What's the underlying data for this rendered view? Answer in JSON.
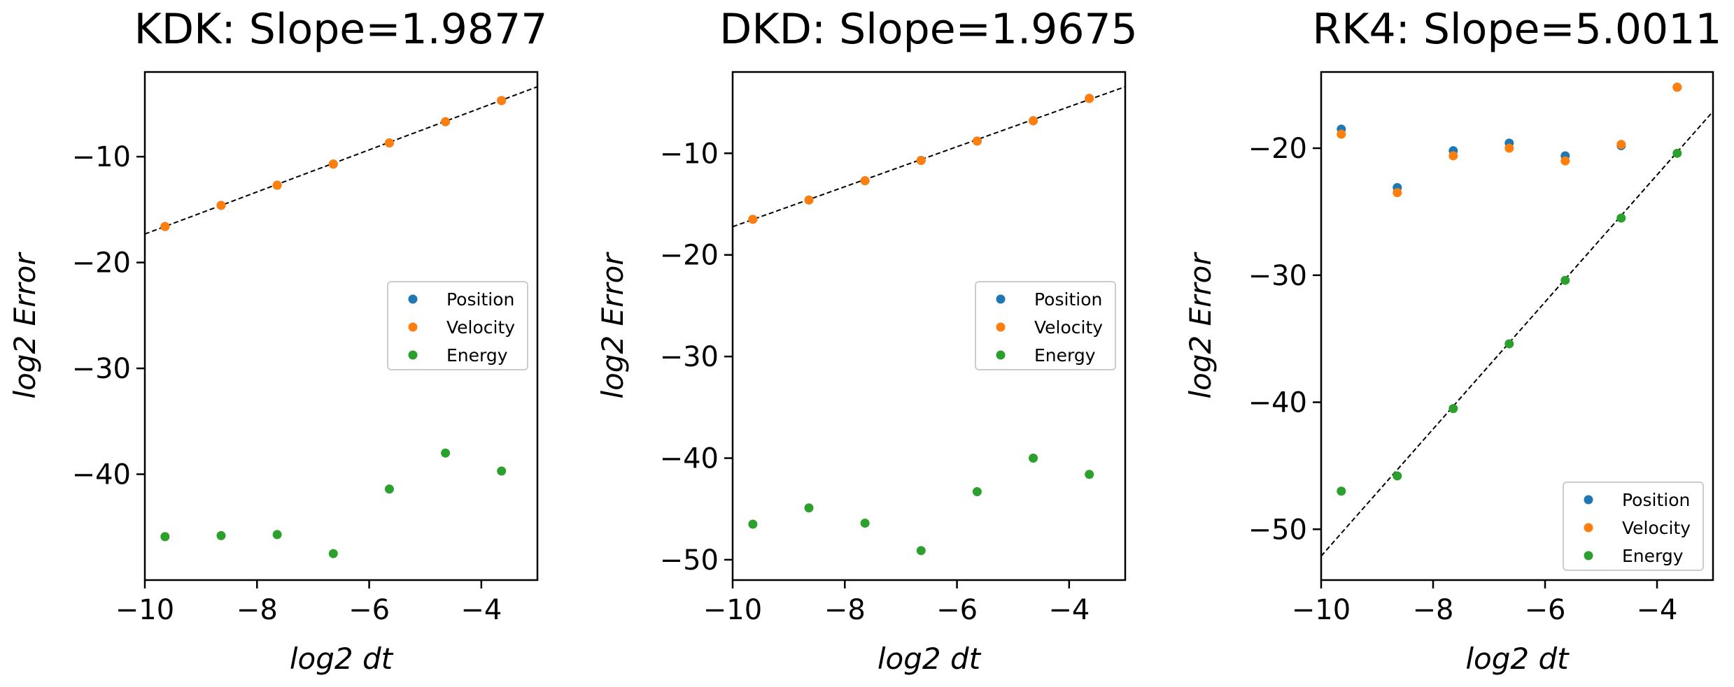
{
  "figure_title": "",
  "legend_entries": [
    "Position",
    "Velocity",
    "Energy"
  ],
  "colors": {
    "position": "#1f77b4",
    "velocity": "#ff7f0e",
    "energy": "#2ca02c",
    "fit_line": "#000000"
  },
  "chart_data": [
    {
      "type": "scatter",
      "title": "KDK: Slope=1.9877",
      "xlabel": "log2 dt",
      "ylabel": "log2 Error",
      "xlim": [
        -10,
        -3
      ],
      "ylim": [
        -50,
        -2
      ],
      "xticks": [
        -10,
        -8,
        -6,
        -4
      ],
      "yticks": [
        -10,
        -20,
        -30,
        -40
      ],
      "x": [
        -9.64,
        -8.64,
        -7.64,
        -6.64,
        -5.64,
        -4.64,
        -3.64
      ],
      "series": [
        {
          "name": "Position",
          "color": "#1f77b4",
          "values": [
            -16.6,
            -14.6,
            -12.7,
            -10.7,
            -8.7,
            -6.7,
            -4.7
          ]
        },
        {
          "name": "Velocity",
          "color": "#ff7f0e",
          "values": [
            -16.6,
            -14.6,
            -12.7,
            -10.7,
            -8.7,
            -6.7,
            -4.7
          ]
        },
        {
          "name": "Energy",
          "color": "#2ca02c",
          "values": [
            -45.9,
            -45.8,
            -45.7,
            -47.5,
            -41.4,
            -38.0,
            -39.7
          ]
        }
      ],
      "fit_line": {
        "slope": 1.9877,
        "intercept": 2.57
      },
      "legend_position": "center-right"
    },
    {
      "type": "scatter",
      "title": "DKD: Slope=1.9675",
      "xlabel": "log2 dt",
      "ylabel": "log2 Error",
      "xlim": [
        -10,
        -3
      ],
      "ylim": [
        -52,
        -2
      ],
      "xticks": [
        -10,
        -8,
        -6,
        -4
      ],
      "yticks": [
        -10,
        -20,
        -30,
        -40,
        -50
      ],
      "x": [
        -9.64,
        -8.64,
        -7.64,
        -6.64,
        -5.64,
        -4.64,
        -3.64
      ],
      "series": [
        {
          "name": "Position",
          "color": "#1f77b4",
          "values": [
            -16.5,
            -14.6,
            -12.7,
            -10.7,
            -8.8,
            -6.8,
            -4.6
          ]
        },
        {
          "name": "Velocity",
          "color": "#ff7f0e",
          "values": [
            -16.5,
            -14.6,
            -12.7,
            -10.7,
            -8.8,
            -6.8,
            -4.6
          ]
        },
        {
          "name": "Energy",
          "color": "#2ca02c",
          "values": [
            -46.5,
            -44.9,
            -46.4,
            -49.1,
            -43.3,
            -40.0,
            -41.6
          ]
        }
      ],
      "fit_line": {
        "slope": 1.9675,
        "intercept": 2.45
      },
      "legend_position": "center-right"
    },
    {
      "type": "scatter",
      "title": "RK4: Slope=5.0011",
      "xlabel": "log2 dt",
      "ylabel": "log2 Error",
      "xlim": [
        -10,
        -3
      ],
      "ylim": [
        -54,
        -14
      ],
      "xticks": [
        -10,
        -8,
        -6,
        -4
      ],
      "yticks": [
        -20,
        -30,
        -40,
        -50
      ],
      "x": [
        -9.64,
        -8.64,
        -7.64,
        -6.64,
        -5.64,
        -4.64,
        -3.64
      ],
      "series": [
        {
          "name": "Position",
          "color": "#1f77b4",
          "values": [
            -18.5,
            -23.1,
            -20.2,
            -19.6,
            -20.6,
            -19.8,
            -15.2
          ]
        },
        {
          "name": "Velocity",
          "color": "#ff7f0e",
          "values": [
            -18.9,
            -23.5,
            -20.6,
            -20.0,
            -21.0,
            -19.7,
            -15.2
          ]
        },
        {
          "name": "Energy",
          "color": "#2ca02c",
          "values": [
            -47.0,
            -45.8,
            -40.5,
            -35.4,
            -30.4,
            -25.5,
            -20.4
          ]
        }
      ],
      "fit_line": {
        "slope": 5.0011,
        "intercept": -2.1
      },
      "legend_position": "lower-right"
    }
  ]
}
